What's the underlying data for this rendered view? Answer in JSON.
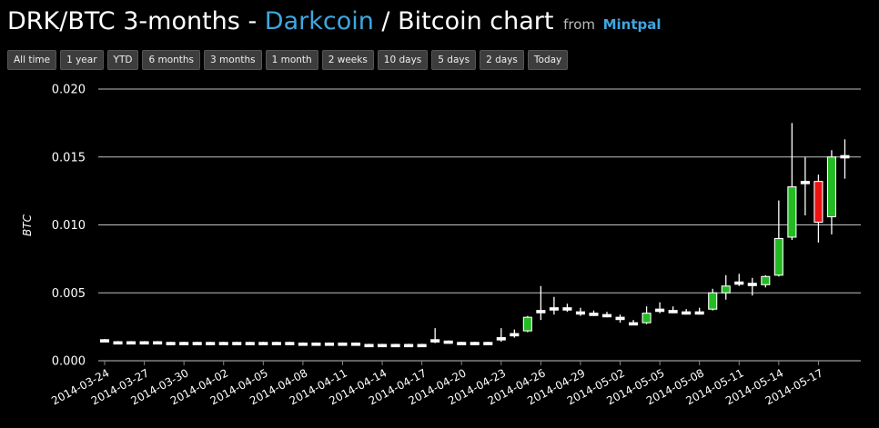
{
  "header": {
    "pair": "DRK/BTC",
    "period": "3-months",
    "sep": " - ",
    "base": "Darkcoin",
    "slash": " / ",
    "quote_chart": "Bitcoin chart",
    "from": "from",
    "source": "Mintpal"
  },
  "ranges": [
    "All time",
    "1 year",
    "YTD",
    "6 months",
    "3 months",
    "1 month",
    "2 weeks",
    "10 days",
    "5 days",
    "2 days",
    "Today"
  ],
  "colors": {
    "up": "#22bb22",
    "down": "#ee1111",
    "flat": "#ffffff",
    "accent": "#3ea7e0"
  },
  "chart_data": {
    "type": "candlestick",
    "ylabel": "BTC",
    "ylim": [
      0,
      0.02
    ],
    "yticks": [
      "0.020",
      "0.015",
      "0.010",
      "0.005",
      "0.000"
    ],
    "xlim": [
      "2014-03-24",
      "2014-05-20"
    ],
    "xticks": [
      "2014-03-24",
      "2014-03-27",
      "2014-03-30",
      "2014-04-02",
      "2014-04-05",
      "2014-04-08",
      "2014-04-11",
      "2014-04-14",
      "2014-04-17",
      "2014-04-20",
      "2014-04-23",
      "2014-04-26",
      "2014-04-29",
      "2014-05-02",
      "2014-05-05",
      "2014-05-08",
      "2014-05-11",
      "2014-05-14",
      "2014-05-17"
    ],
    "grid": true,
    "candles": [
      [
        "2014-03-24",
        0.00155,
        0.0016,
        0.0015,
        0.0015
      ],
      [
        "2014-03-25",
        0.0014,
        0.00145,
        0.00135,
        0.00135
      ],
      [
        "2014-03-26",
        0.0014,
        0.00145,
        0.00135,
        0.00135
      ],
      [
        "2014-03-27",
        0.0014,
        0.00145,
        0.00135,
        0.00135
      ],
      [
        "2014-03-28",
        0.0014,
        0.00145,
        0.00135,
        0.00135
      ],
      [
        "2014-03-29",
        0.00135,
        0.0014,
        0.0013,
        0.0013
      ],
      [
        "2014-03-30",
        0.00135,
        0.0014,
        0.0013,
        0.0013
      ],
      [
        "2014-03-31",
        0.00135,
        0.0014,
        0.0013,
        0.0013
      ],
      [
        "2014-04-01",
        0.00135,
        0.0014,
        0.0013,
        0.0013
      ],
      [
        "2014-04-02",
        0.00135,
        0.0014,
        0.0013,
        0.0013
      ],
      [
        "2014-04-03",
        0.00135,
        0.0014,
        0.0013,
        0.0013
      ],
      [
        "2014-04-04",
        0.00135,
        0.0014,
        0.0013,
        0.0013
      ],
      [
        "2014-04-05",
        0.00135,
        0.0014,
        0.0013,
        0.0013
      ],
      [
        "2014-04-06",
        0.00135,
        0.0014,
        0.0013,
        0.0013
      ],
      [
        "2014-04-07",
        0.00135,
        0.0014,
        0.0013,
        0.0013
      ],
      [
        "2014-04-08",
        0.0013,
        0.00135,
        0.00125,
        0.00125
      ],
      [
        "2014-04-09",
        0.0013,
        0.00135,
        0.00125,
        0.00125
      ],
      [
        "2014-04-10",
        0.0013,
        0.00135,
        0.00125,
        0.00125
      ],
      [
        "2014-04-11",
        0.0013,
        0.00135,
        0.00125,
        0.00125
      ],
      [
        "2014-04-12",
        0.0013,
        0.00135,
        0.00125,
        0.00125
      ],
      [
        "2014-04-13",
        0.0012,
        0.00125,
        0.00115,
        0.00115
      ],
      [
        "2014-04-14",
        0.0012,
        0.00125,
        0.00115,
        0.00115
      ],
      [
        "2014-04-15",
        0.0012,
        0.00125,
        0.00115,
        0.00115
      ],
      [
        "2014-04-16",
        0.0012,
        0.00125,
        0.00115,
        0.00115
      ],
      [
        "2014-04-17",
        0.0012,
        0.00125,
        0.00115,
        0.00115
      ],
      [
        "2014-04-18",
        0.0014,
        0.0024,
        0.0013,
        0.00155
      ],
      [
        "2014-04-19",
        0.00145,
        0.0015,
        0.0014,
        0.0014
      ],
      [
        "2014-04-20",
        0.00135,
        0.0014,
        0.0013,
        0.0013
      ],
      [
        "2014-04-21",
        0.00135,
        0.0014,
        0.0013,
        0.0013
      ],
      [
        "2014-04-22",
        0.00135,
        0.0014,
        0.0013,
        0.0013
      ],
      [
        "2014-04-23",
        0.0016,
        0.0024,
        0.0014,
        0.0017
      ],
      [
        "2014-04-24",
        0.0019,
        0.0023,
        0.0017,
        0.002
      ],
      [
        "2014-04-25",
        0.0022,
        0.0033,
        0.0021,
        0.0032
      ],
      [
        "2014-04-26",
        0.0036,
        0.0055,
        0.003,
        0.0037
      ],
      [
        "2014-04-27",
        0.0038,
        0.0047,
        0.0034,
        0.0039
      ],
      [
        "2014-04-28",
        0.0038,
        0.0042,
        0.0036,
        0.0039
      ],
      [
        "2014-04-29",
        0.0036,
        0.0039,
        0.0033,
        0.0035
      ],
      [
        "2014-04-30",
        0.0035,
        0.0037,
        0.0033,
        0.0034
      ],
      [
        "2014-05-01",
        0.0034,
        0.0036,
        0.0032,
        0.0033
      ],
      [
        "2014-05-02",
        0.0032,
        0.0034,
        0.0028,
        0.0031
      ],
      [
        "2014-05-03",
        0.0028,
        0.003,
        0.0027,
        0.0027
      ],
      [
        "2014-05-04",
        0.0028,
        0.004,
        0.0027,
        0.0035
      ],
      [
        "2014-05-05",
        0.0037,
        0.0043,
        0.0035,
        0.0038
      ],
      [
        "2014-05-06",
        0.0037,
        0.004,
        0.0035,
        0.0036
      ],
      [
        "2014-05-07",
        0.0036,
        0.0038,
        0.0034,
        0.0035
      ],
      [
        "2014-05-08",
        0.0036,
        0.0039,
        0.0034,
        0.0035
      ],
      [
        "2014-05-09",
        0.0038,
        0.0053,
        0.0037,
        0.005
      ],
      [
        "2014-05-10",
        0.005,
        0.0063,
        0.0045,
        0.0055
      ],
      [
        "2014-05-11",
        0.0058,
        0.0064,
        0.0055,
        0.0058
      ],
      [
        "2014-05-12",
        0.0057,
        0.0061,
        0.0048,
        0.0056
      ],
      [
        "2014-05-13",
        0.0056,
        0.0063,
        0.0054,
        0.0062
      ],
      [
        "2014-05-14",
        0.0063,
        0.0118,
        0.0062,
        0.009
      ],
      [
        "2014-05-15",
        0.0091,
        0.0175,
        0.0089,
        0.0128
      ],
      [
        "2014-05-16",
        0.0132,
        0.015,
        0.0107,
        0.0132
      ],
      [
        "2014-05-17",
        0.0132,
        0.0137,
        0.0087,
        0.0102
      ],
      [
        "2014-05-18",
        0.0106,
        0.0155,
        0.0093,
        0.015
      ],
      [
        "2014-05-19",
        0.0151,
        0.0163,
        0.0134,
        0.015
      ]
    ]
  }
}
